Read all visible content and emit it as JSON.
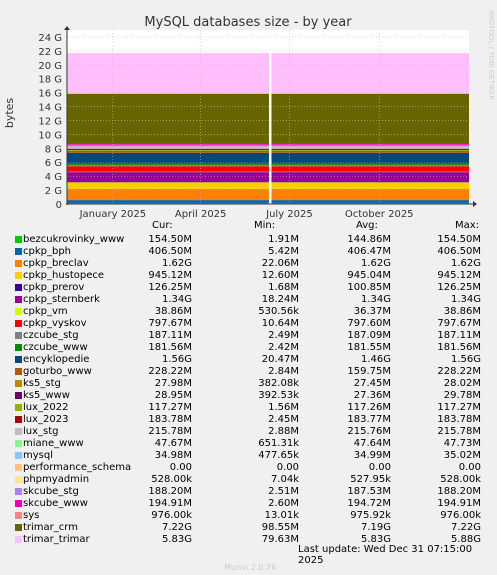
{
  "chart_data": {
    "type": "area",
    "title": "MySQL databases size - by year",
    "ylabel": "bytes",
    "watermark": "RRDTOOL / TOBI OETIKER",
    "y_ticks": [
      0,
      2,
      4,
      6,
      8,
      10,
      12,
      14,
      16,
      18,
      20,
      22,
      24
    ],
    "y_tick_labels": [
      "0",
      "2 G",
      "4 G",
      "6 G",
      "8 G",
      "10 G",
      "12 G",
      "14 G",
      "16 G",
      "18 G",
      "20 G",
      "22 G",
      "24 G"
    ],
    "y_unit": "GB",
    "ylim": [
      0,
      25
    ],
    "x_tick_labels": [
      "January 2025",
      "April 2025",
      "July 2025",
      "October 2025"
    ],
    "x_tick_dates": [
      "2025-01-01",
      "2025-04-01",
      "2025-07-01",
      "2025-10-01"
    ],
    "xlim": [
      "2024-11-15",
      "2026-01-01"
    ],
    "gap": [
      "2025-06-10",
      "2025-06-12"
    ],
    "grid": true,
    "columns": [
      "Cur:",
      "Min:",
      "Avg:",
      "Max:"
    ],
    "series": [
      {
        "name": "bezcukrovinky_www",
        "color": "#00cc00",
        "cur": "154.50M",
        "min": "1.91M",
        "avg": "144.86M",
        "max": "154.50M",
        "cur_gb": 0.1545
      },
      {
        "name": "cpkp_bph",
        "color": "#0066b3",
        "cur": "406.50M",
        "min": "5.42M",
        "avg": "406.47M",
        "max": "406.50M",
        "cur_gb": 0.4065
      },
      {
        "name": "cpkp_breclav",
        "color": "#ff8000",
        "cur": "1.62G",
        "min": "22.06M",
        "avg": "1.62G",
        "max": "1.62G",
        "cur_gb": 1.62
      },
      {
        "name": "cpkp_hustopece",
        "color": "#ffcc00",
        "cur": "945.12M",
        "min": "12.60M",
        "avg": "945.04M",
        "max": "945.12M",
        "cur_gb": 0.94512
      },
      {
        "name": "cpkp_prerov",
        "color": "#330099",
        "cur": "126.25M",
        "min": "1.68M",
        "avg": "100.85M",
        "max": "126.25M",
        "cur_gb": 0.12625
      },
      {
        "name": "cpkp_sternberk",
        "color": "#990099",
        "cur": "1.34G",
        "min": "18.24M",
        "avg": "1.34G",
        "max": "1.34G",
        "cur_gb": 1.34
      },
      {
        "name": "cpkp_vm",
        "color": "#ccff00",
        "cur": "38.86M",
        "min": "530.56k",
        "avg": "36.37M",
        "max": "38.86M",
        "cur_gb": 0.03886
      },
      {
        "name": "cpkp_vyskov",
        "color": "#ff0000",
        "cur": "797.67M",
        "min": "10.64M",
        "avg": "797.60M",
        "max": "797.67M",
        "cur_gb": 0.79767
      },
      {
        "name": "czcube_stg",
        "color": "#808080",
        "cur": "187.11M",
        "min": "2.49M",
        "avg": "187.09M",
        "max": "187.11M",
        "cur_gb": 0.18711
      },
      {
        "name": "czcube_www",
        "color": "#008f00",
        "cur": "181.56M",
        "min": "2.42M",
        "avg": "181.55M",
        "max": "181.56M",
        "cur_gb": 0.18156
      },
      {
        "name": "encyklopedie",
        "color": "#00487d",
        "cur": "1.56G",
        "min": "20.47M",
        "avg": "1.46G",
        "max": "1.56G",
        "cur_gb": 1.56
      },
      {
        "name": "goturbo_www",
        "color": "#b35a00",
        "cur": "228.22M",
        "min": "2.84M",
        "avg": "159.75M",
        "max": "228.22M",
        "cur_gb": 0.22822
      },
      {
        "name": "ks5_stg",
        "color": "#b38f00",
        "cur": "27.98M",
        "min": "382.08k",
        "avg": "27.45M",
        "max": "28.02M",
        "cur_gb": 0.02798
      },
      {
        "name": "ks5_www",
        "color": "#6b006b",
        "cur": "28.95M",
        "min": "392.53k",
        "avg": "27.36M",
        "max": "29.78M",
        "cur_gb": 0.02895
      },
      {
        "name": "lux_2022",
        "color": "#8fb300",
        "cur": "117.27M",
        "min": "1.56M",
        "avg": "117.26M",
        "max": "117.27M",
        "cur_gb": 0.11727
      },
      {
        "name": "lux_2023",
        "color": "#b30000",
        "cur": "183.78M",
        "min": "2.45M",
        "avg": "183.77M",
        "max": "183.78M",
        "cur_gb": 0.18378
      },
      {
        "name": "lux_stg",
        "color": "#bebebe",
        "cur": "215.78M",
        "min": "2.88M",
        "avg": "215.76M",
        "max": "215.78M",
        "cur_gb": 0.21578
      },
      {
        "name": "miane_www",
        "color": "#80ff80",
        "cur": "47.67M",
        "min": "651.31k",
        "avg": "47.64M",
        "max": "47.73M",
        "cur_gb": 0.04767
      },
      {
        "name": "mysql",
        "color": "#80c9ff",
        "cur": "34.98M",
        "min": "477.65k",
        "avg": "34.99M",
        "max": "35.02M",
        "cur_gb": 0.03498
      },
      {
        "name": "performance_schema",
        "color": "#ffc080",
        "cur": "0.00",
        "min": "0.00",
        "avg": "0.00",
        "max": "0.00",
        "cur_gb": 0
      },
      {
        "name": "phpmyadmin",
        "color": "#ffe680",
        "cur": "528.00k",
        "min": "7.04k",
        "avg": "527.95k",
        "max": "528.00k",
        "cur_gb": 0.000528
      },
      {
        "name": "skcube_stg",
        "color": "#aa80ff",
        "cur": "188.20M",
        "min": "2.51M",
        "avg": "187.53M",
        "max": "188.20M",
        "cur_gb": 0.1882
      },
      {
        "name": "skcube_www",
        "color": "#ee00cc",
        "cur": "194.91M",
        "min": "2.60M",
        "avg": "194.72M",
        "max": "194.91M",
        "cur_gb": 0.19491
      },
      {
        "name": "sys",
        "color": "#ff8080",
        "cur": "976.00k",
        "min": "13.01k",
        "avg": "975.92k",
        "max": "976.00k",
        "cur_gb": 0.000976
      },
      {
        "name": "trimar_crm",
        "color": "#666600",
        "cur": "7.22G",
        "min": "98.55M",
        "avg": "7.19G",
        "max": "7.22G",
        "cur_gb": 7.22
      },
      {
        "name": "trimar_trimar",
        "color": "#ffbfff",
        "cur": "5.83G",
        "min": "79.63M",
        "avg": "5.83G",
        "max": "5.88G",
        "cur_gb": 5.83
      }
    ]
  },
  "footer": {
    "last_update": "Last update: Wed Dec 31 07:15:00 2025",
    "munin": "Munin 2.0.76"
  }
}
